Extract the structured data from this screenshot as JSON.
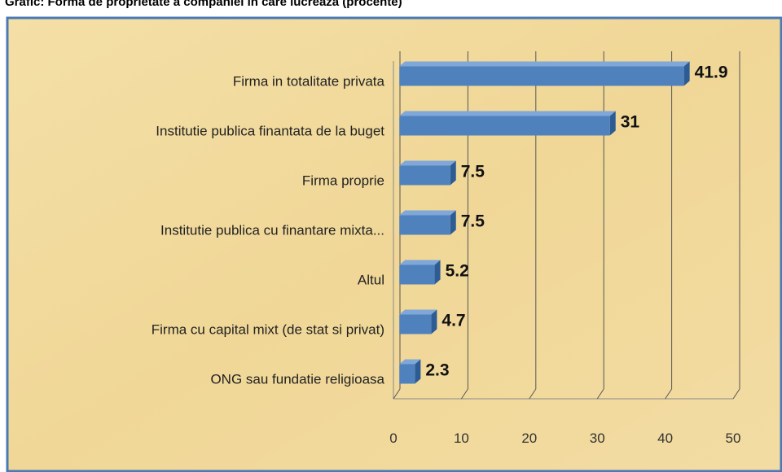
{
  "chart_data": {
    "type": "bar",
    "orientation": "horizontal",
    "title": "Grafic: Forma de proprietate a companiei in care lucreaza (procente)",
    "categories": [
      "Firma in totalitate privata",
      "Institutie publica finantata de la buget",
      "Firma proprie",
      "Institutie publica cu finantare mixta...",
      "Altul",
      "Firma cu capital mixt (de stat si privat)",
      "ONG sau fundatie religioasa"
    ],
    "values": [
      41.9,
      31,
      7.5,
      7.5,
      5.2,
      4.7,
      2.3
    ],
    "color": "#4f81bd",
    "xlim": [
      0,
      50
    ],
    "xticks": [
      0,
      10,
      20,
      30,
      40,
      50
    ],
    "grid": true
  }
}
